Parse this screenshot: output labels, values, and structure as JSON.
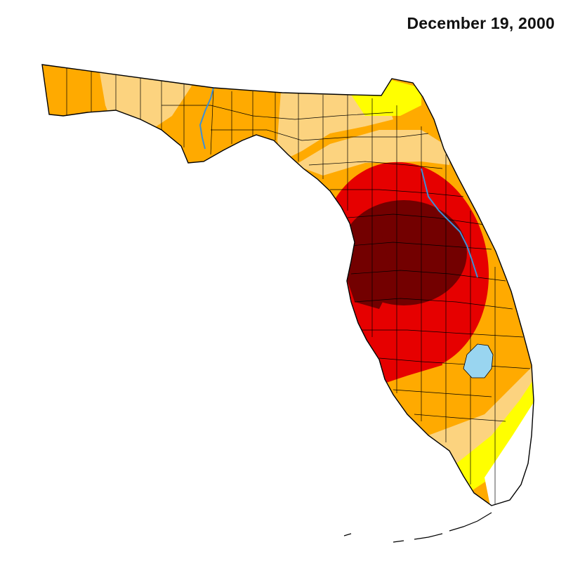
{
  "map": {
    "title": "December 19, 2000",
    "region": "Florida",
    "colors": {
      "none": "#ffffff",
      "abnormally_dry": "#ffff00",
      "moderate": "#fcd37f",
      "severe": "#ffaa00",
      "extreme": "#e60000",
      "exceptional": "#730000",
      "water": "#99d5f0",
      "river": "#3c8fd6",
      "outline": "#000000"
    }
  }
}
